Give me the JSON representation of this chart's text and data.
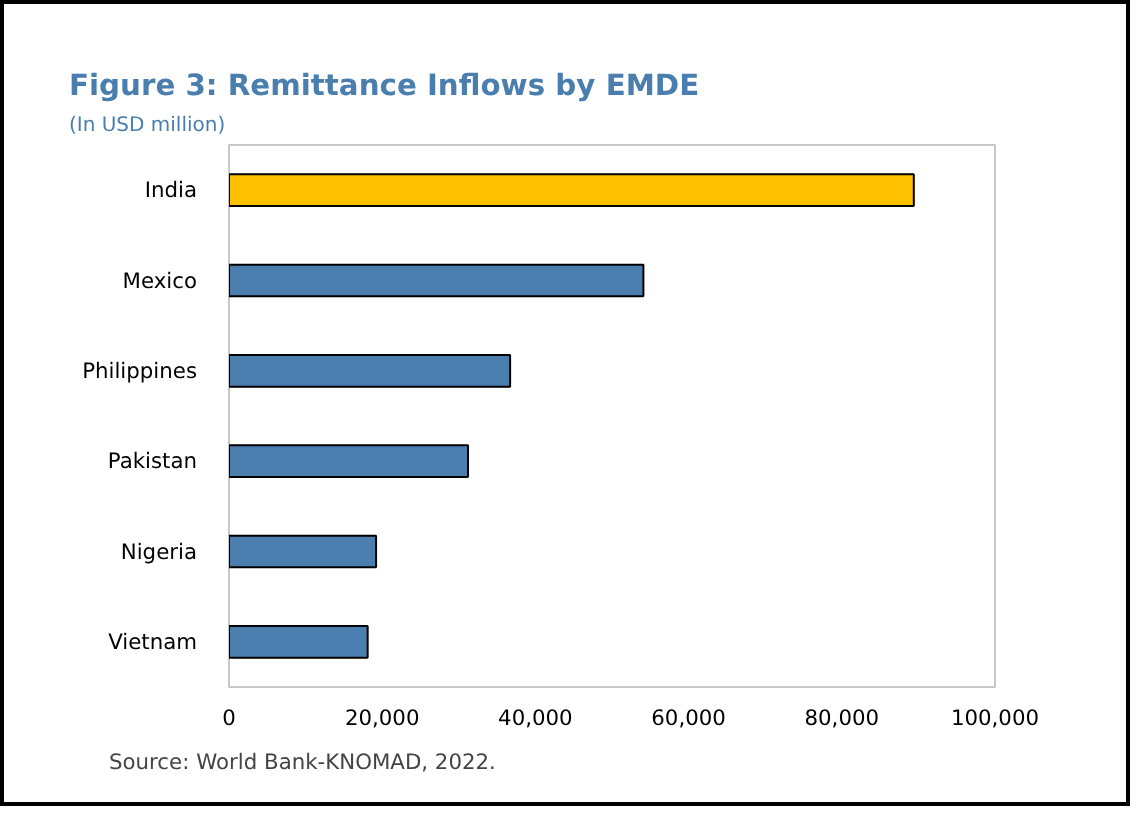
{
  "chart_data": {
    "type": "bar",
    "orientation": "horizontal",
    "title": "Figure 3: Remittance Inflows by EMDE",
    "subtitle": "(In USD million)",
    "categories": [
      "India",
      "Mexico",
      "Philippines",
      "Pakistan",
      "Nigeria",
      "Vietnam"
    ],
    "values": [
      89400,
      54100,
      36700,
      31200,
      19200,
      18100
    ],
    "colors": [
      "#ffc000",
      "#4a7eaf",
      "#4a7eaf",
      "#4a7eaf",
      "#4a7eaf",
      "#4a7eaf"
    ],
    "xlim": [
      0,
      100000
    ],
    "xticks": [
      {
        "value": 0,
        "label": "0"
      },
      {
        "value": 20000,
        "label": "20,000"
      },
      {
        "value": 40000,
        "label": "40,000"
      },
      {
        "value": 60000,
        "label": "60,000"
      },
      {
        "value": 80000,
        "label": "80,000"
      },
      {
        "value": 100000,
        "label": "100,000"
      }
    ],
    "grid": false,
    "annotations": [
      "Source: World Bank-KNOMAD, 2022."
    ]
  }
}
